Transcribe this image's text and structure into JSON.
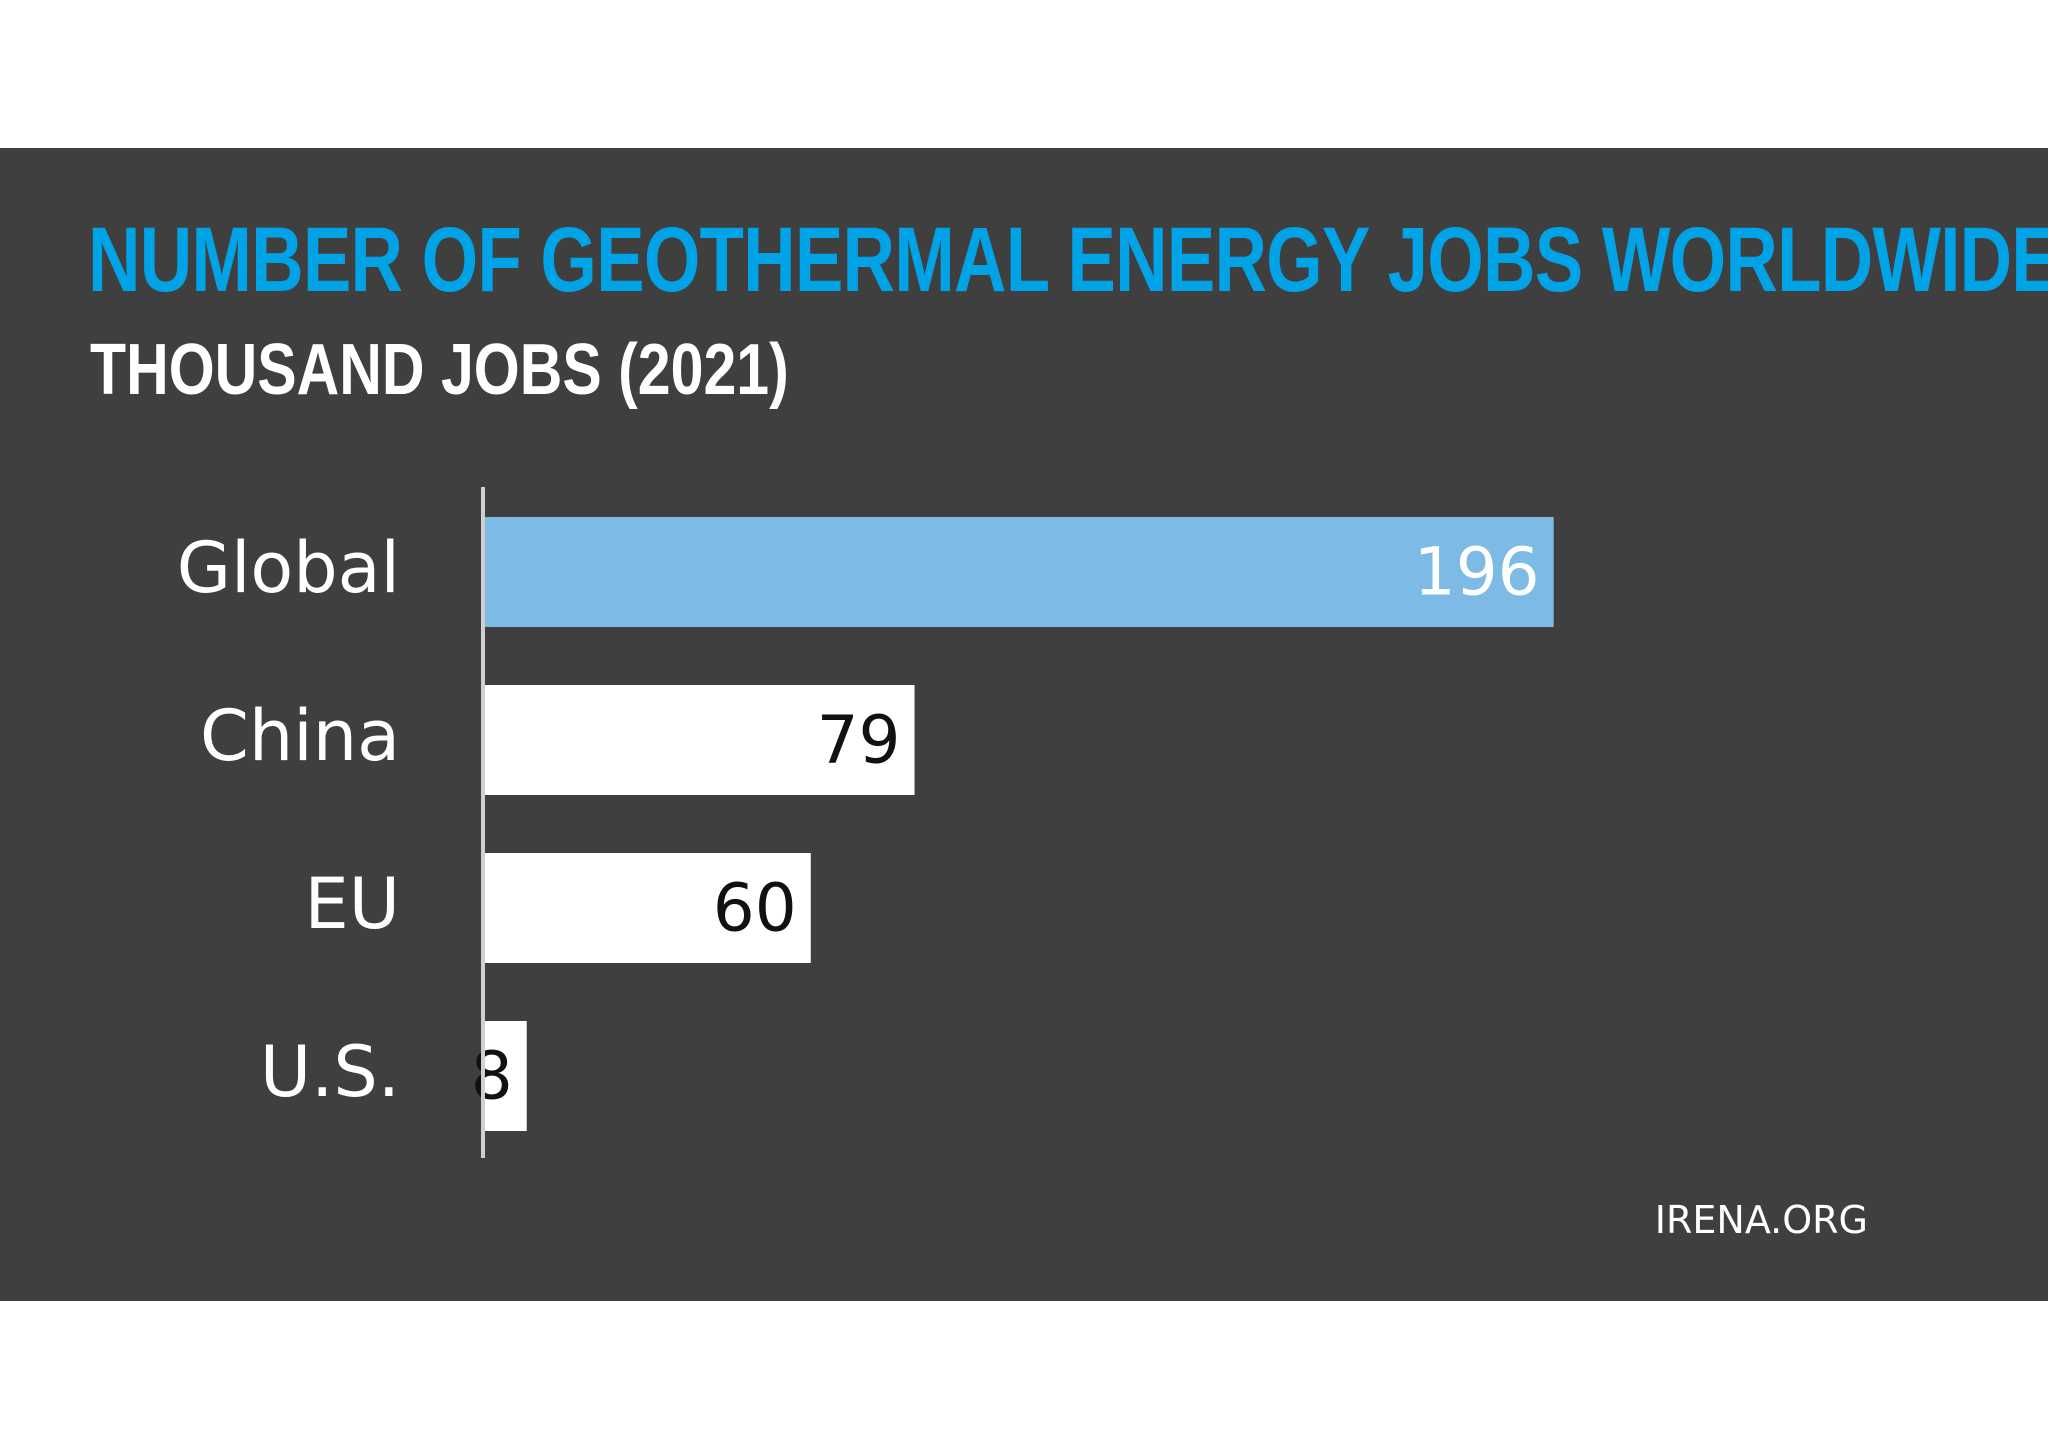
{
  "header": {
    "title": "NUMBER OF GEOTHERMAL ENERGY JOBS WORLDWIDE",
    "subtitle": "THOUSAND JOBS (2021)"
  },
  "footer": {
    "source": "IRENA.ORG"
  },
  "colors": {
    "background": "#3f3f3f",
    "title": "#00a3e6",
    "highlight_bar": "#7dbbe6",
    "bar": "#ffffff",
    "highlight_label": "#ffffff",
    "bar_label": "#111111",
    "category_label": "#ffffff",
    "axis": "#cfcfcf"
  },
  "chart_data": {
    "type": "bar",
    "orientation": "horizontal",
    "title": "NUMBER OF GEOTHERMAL ENERGY JOBS WORLDWIDE",
    "subtitle": "THOUSAND JOBS (2021)",
    "categories": [
      "Global",
      "China",
      "EU",
      "U.S."
    ],
    "values": [
      196,
      79,
      60,
      8
    ],
    "highlight_index": 0,
    "xlim": [
      0,
      255
    ],
    "grid": false,
    "legend": "none",
    "data_labels": [
      "196",
      "79",
      "60",
      "8"
    ]
  }
}
